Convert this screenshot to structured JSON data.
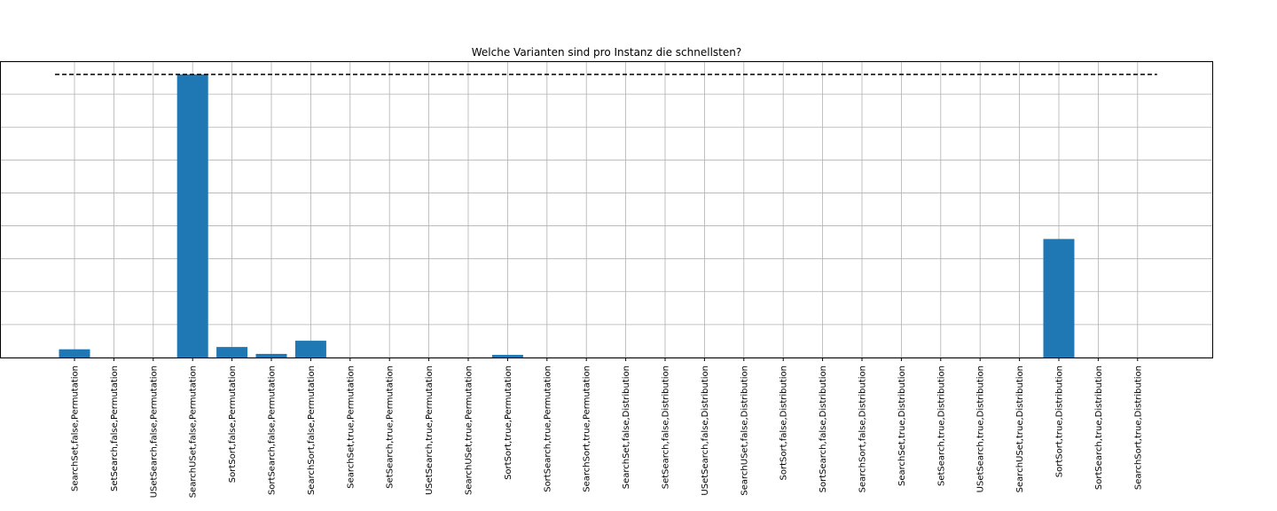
{
  "chart_data": {
    "type": "bar",
    "title": "Welche Varianten sind pro Instanz die schnellsten?",
    "xlabel": "",
    "ylabel": "",
    "categories": [
      "SearchSet,false,Permutation",
      "SetSearch,false,Permutation",
      "USetSearch,false,Permutation",
      "SearchUSet,false,Permutation",
      "SortSort,false,Permutation",
      "SortSearch,false,Permutation",
      "SearchSort,false,Permutation",
      "SearchSet,true,Permutation",
      "SetSearch,true,Permutation",
      "USetSearch,true,Permutation",
      "SearchUSet,true,Permutation",
      "SortSort,true,Permutation",
      "SortSearch,true,Permutation",
      "SearchSort,true,Permutation",
      "SearchSet,false,Distribution",
      "SetSearch,false,Distribution",
      "USetSearch,false,Distribution",
      "SearchUSet,false,Distribution",
      "SortSort,false,Distribution",
      "SortSearch,false,Distribution",
      "SearchSort,false,Distribution",
      "SearchSet,true,Distribution",
      "SetSearch,true,Distribution",
      "USetSearch,true,Distribution",
      "SearchUSet,true,Distribution",
      "SortSort,true,Distribution",
      "SortSearch,true,Distribution",
      "SearchSort,true,Distribution"
    ],
    "values": [
      2.5,
      0,
      0,
      86,
      3.2,
      1.1,
      5.1,
      0,
      0,
      0,
      0,
      0.8,
      0,
      0,
      0,
      0,
      0,
      0,
      0,
      0,
      0,
      0,
      0,
      0,
      0,
      36,
      0,
      0
    ],
    "reference_line": 86,
    "ylim": [
      0,
      90
    ],
    "yticks": [
      0,
      10,
      20,
      30,
      40,
      50,
      60,
      70,
      80,
      90
    ],
    "grid": true,
    "legend": "none",
    "colors": {
      "bar": "#1f77b4",
      "reference_line": "#000000",
      "grid": "#b0b0b0"
    }
  }
}
